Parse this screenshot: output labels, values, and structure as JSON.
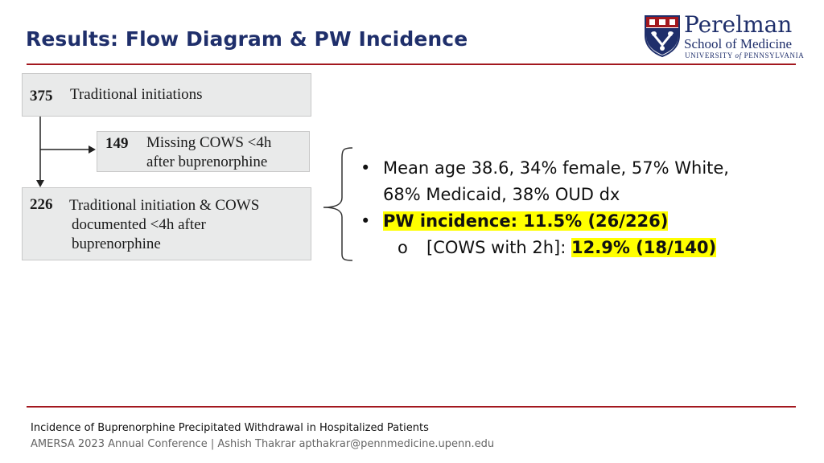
{
  "title": "Results: Flow Diagram & PW Incidence",
  "logo": {
    "line1": "Perelman",
    "line2": "School of Medicine",
    "line3_a": "UNIVERSITY",
    "line3_of": "of",
    "line3_b": "PENNSYLVANIA"
  },
  "flow": {
    "box1": {
      "count": "375",
      "label": "Traditional initiations"
    },
    "box2": {
      "count": "149",
      "label_line1": "Missing COWS <4h",
      "label_line2": "after buprenorphine"
    },
    "box3": {
      "count": "226",
      "label_line1": "Traditional initiation & COWS",
      "label_line2": "documented <4h after",
      "label_line3": "buprenorphine"
    }
  },
  "bullets": {
    "b1_line1": "Mean age 38.6, 34% female, 57% White,",
    "b1_line2": "68% Medicaid, 38% OUD dx",
    "b2": "PW incidence: 11.5% (26/226)",
    "sub_marker": "o",
    "sub_prefix": "[COWS with 2h]: ",
    "sub_value": "12.9% (18/140)"
  },
  "footer": {
    "title": "Incidence of Buprenorphine Precipitated Withdrawal in Hospitalized Patients",
    "subtitle": "AMERSA 2023 Annual Conference | Ashish Thakrar apthakrar@pennmedicine.upenn.edu"
  },
  "colors": {
    "title": "#1f2f6b",
    "rule": "#a3171e",
    "box_bg": "#e9eaea",
    "highlight": "#ffff00"
  }
}
